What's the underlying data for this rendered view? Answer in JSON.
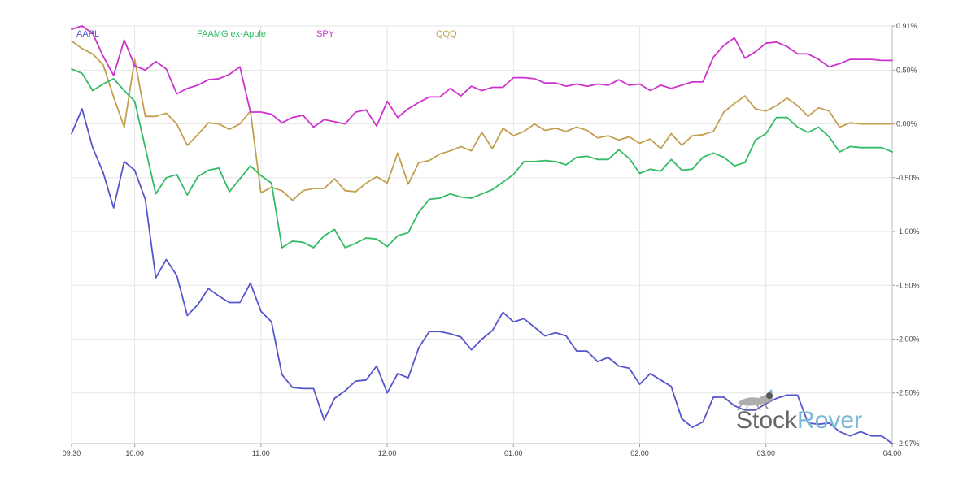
{
  "chart_data": {
    "type": "line",
    "title": "",
    "xlabel": "",
    "ylabel": "",
    "x_ticks": [
      "09:30",
      "10:00",
      "11:00",
      "12:00",
      "01:00",
      "02:00",
      "03:00",
      "04:00"
    ],
    "y_ticks": [
      "0.91%",
      "0.50%",
      "0.00%",
      "-0.50%",
      "-1.00%",
      "-1.50%",
      "-2.00%",
      "-2.50%",
      "-2.97%"
    ],
    "x_range": [
      "09:30",
      "04:00"
    ],
    "ylim": [
      -2.97,
      0.91
    ],
    "grid": true,
    "legend_position": "top-left",
    "series": [
      {
        "name": "AAPL",
        "color": "#5555cc",
        "values": [
          -0.09,
          0.14,
          -0.22,
          -0.45,
          -0.78,
          -0.35,
          -0.43,
          -0.7,
          -1.43,
          -1.26,
          -1.41,
          -1.78,
          -1.68,
          -1.53,
          -1.6,
          -1.66,
          -1.66,
          -1.48,
          -1.74,
          -1.84,
          -2.33,
          -2.45,
          -2.46,
          -2.46,
          -2.75,
          -2.55,
          -2.48,
          -2.39,
          -2.38,
          -2.25,
          -2.5,
          -2.32,
          -2.36,
          -2.08,
          -1.93,
          -1.93,
          -1.95,
          -1.98,
          -2.1,
          -2.0,
          -1.92,
          -1.75,
          -1.84,
          -1.81,
          -1.89,
          -1.97,
          -1.94,
          -1.97,
          -2.11,
          -2.11,
          -2.21,
          -2.17,
          -2.25,
          -2.27,
          -2.42,
          -2.32,
          -2.38,
          -2.44,
          -2.74,
          -2.82,
          -2.77,
          -2.54,
          -2.54,
          -2.62,
          -2.66,
          -2.66,
          -2.6,
          -2.55,
          -2.52,
          -2.52,
          -2.78,
          -2.79,
          -2.78,
          -2.86,
          -2.9,
          -2.86,
          -2.9,
          -2.9,
          -2.97
        ]
      },
      {
        "name": "FAAMG ex-Apple",
        "color": "#33bb66",
        "values": [
          0.51,
          0.47,
          0.31,
          0.37,
          0.42,
          0.31,
          0.21,
          -0.22,
          -0.65,
          -0.5,
          -0.47,
          -0.66,
          -0.49,
          -0.43,
          -0.41,
          -0.63,
          -0.51,
          -0.39,
          -0.48,
          -0.55,
          -1.15,
          -1.09,
          -1.1,
          -1.15,
          -1.04,
          -0.98,
          -1.15,
          -1.11,
          -1.06,
          -1.07,
          -1.14,
          -1.04,
          -1.01,
          -0.82,
          -0.7,
          -0.69,
          -0.65,
          -0.68,
          -0.69,
          -0.65,
          -0.61,
          -0.54,
          -0.47,
          -0.35,
          -0.35,
          -0.34,
          -0.35,
          -0.38,
          -0.31,
          -0.3,
          -0.33,
          -0.33,
          -0.24,
          -0.32,
          -0.46,
          -0.42,
          -0.44,
          -0.33,
          -0.43,
          -0.42,
          -0.31,
          -0.27,
          -0.31,
          -0.39,
          -0.36,
          -0.15,
          -0.09,
          0.06,
          0.06,
          -0.03,
          -0.08,
          -0.03,
          -0.12,
          -0.26,
          -0.21,
          -0.22,
          -0.22,
          -0.22,
          -0.26
        ]
      },
      {
        "name": "SPY",
        "color": "#cc33cc",
        "values": [
          0.88,
          0.91,
          0.84,
          0.63,
          0.45,
          0.78,
          0.54,
          0.5,
          0.58,
          0.51,
          0.28,
          0.33,
          0.36,
          0.41,
          0.42,
          0.46,
          0.53,
          0.11,
          0.11,
          0.09,
          0.01,
          0.06,
          0.08,
          -0.03,
          0.04,
          0.02,
          0.0,
          0.11,
          0.13,
          -0.02,
          0.21,
          0.06,
          0.14,
          0.2,
          0.25,
          0.25,
          0.33,
          0.26,
          0.35,
          0.31,
          0.34,
          0.34,
          0.43,
          0.43,
          0.42,
          0.38,
          0.38,
          0.35,
          0.37,
          0.35,
          0.37,
          0.36,
          0.41,
          0.36,
          0.37,
          0.31,
          0.36,
          0.33,
          0.36,
          0.39,
          0.39,
          0.62,
          0.73,
          0.8,
          0.61,
          0.67,
          0.75,
          0.76,
          0.72,
          0.65,
          0.65,
          0.6,
          0.53,
          0.56,
          0.6,
          0.6,
          0.6,
          0.59,
          0.59
        ]
      },
      {
        "name": "QQQ",
        "color": "#c2a050",
        "values": [
          0.77,
          0.7,
          0.65,
          0.55,
          0.25,
          -0.03,
          0.6,
          0.07,
          0.07,
          0.1,
          0.0,
          -0.2,
          -0.1,
          0.01,
          0.0,
          -0.05,
          0.0,
          0.12,
          -0.64,
          -0.59,
          -0.62,
          -0.71,
          -0.62,
          -0.6,
          -0.6,
          -0.51,
          -0.62,
          -0.63,
          -0.55,
          -0.49,
          -0.55,
          -0.27,
          -0.56,
          -0.36,
          -0.34,
          -0.28,
          -0.25,
          -0.21,
          -0.25,
          -0.08,
          -0.23,
          -0.04,
          -0.11,
          -0.07,
          0.0,
          -0.06,
          -0.04,
          -0.07,
          -0.03,
          -0.06,
          -0.13,
          -0.11,
          -0.15,
          -0.12,
          -0.18,
          -0.14,
          -0.23,
          -0.09,
          -0.2,
          -0.11,
          -0.1,
          -0.07,
          0.11,
          0.19,
          0.26,
          0.14,
          0.12,
          0.17,
          0.24,
          0.17,
          0.07,
          0.15,
          0.12,
          -0.03,
          0.01,
          0.0,
          0.0,
          0.0,
          0.0
        ]
      }
    ]
  },
  "watermark": {
    "brand_left": "Stock",
    "brand_right": "Rover",
    "brand_left_color": "#666666",
    "brand_right_color": "#7ab8d8"
  }
}
